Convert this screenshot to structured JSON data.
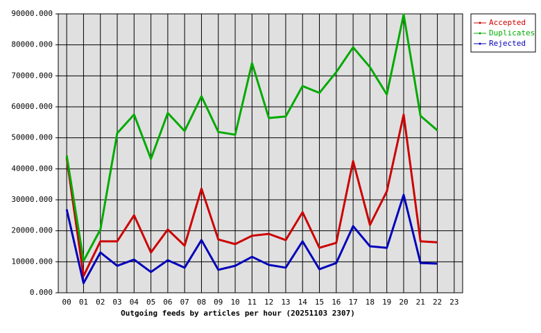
{
  "chart_data": {
    "type": "line",
    "x_label": "Outgoing feeds by articles per hour (20251103 2307)",
    "categories": [
      "00",
      "01",
      "02",
      "03",
      "04",
      "05",
      "06",
      "07",
      "08",
      "09",
      "10",
      "11",
      "12",
      "13",
      "14",
      "15",
      "16",
      "17",
      "18",
      "19",
      "20",
      "21",
      "22",
      "23"
    ],
    "series": [
      {
        "name": "Accepted",
        "color": "#cc0000",
        "values": [
          43500,
          5400,
          16600,
          16600,
          25000,
          13000,
          20400,
          15200,
          33600,
          17200,
          15700,
          18400,
          19000,
          17000,
          26000,
          14500,
          16100,
          42500,
          21900,
          32700,
          57500,
          16600,
          16300,
          null
        ]
      },
      {
        "name": "Duplicates",
        "color": "#00aa00",
        "values": [
          44300,
          10300,
          20400,
          51500,
          57500,
          43200,
          58000,
          52200,
          63400,
          51900,
          51000,
          74100,
          56400,
          56900,
          66700,
          64500,
          71200,
          79200,
          72800,
          64000,
          89800,
          57100,
          52400,
          null
        ]
      },
      {
        "name": "Rejected",
        "color": "#0000bb",
        "values": [
          26900,
          3100,
          13000,
          8700,
          10700,
          6700,
          10500,
          8100,
          17000,
          7400,
          8700,
          11600,
          9000,
          8100,
          16600,
          7600,
          9600,
          21500,
          15000,
          14500,
          31600,
          9600,
          9400,
          null
        ]
      }
    ],
    "ylim": [
      0,
      90000
    ],
    "yticks": [
      {
        "value": 0,
        "label": "0.000"
      },
      {
        "value": 10000,
        "label": "10000.000"
      },
      {
        "value": 20000,
        "label": "20000.000"
      },
      {
        "value": 30000,
        "label": "30000.000"
      },
      {
        "value": 40000,
        "label": "40000.000"
      },
      {
        "value": 50000,
        "label": "50000.000"
      },
      {
        "value": 60000,
        "label": "60000.000"
      },
      {
        "value": 70000,
        "label": "70000.000"
      },
      {
        "value": 80000,
        "label": "80000.000"
      },
      {
        "value": 90000,
        "label": "90000.000"
      }
    ],
    "grid": true,
    "legend": "right"
  }
}
